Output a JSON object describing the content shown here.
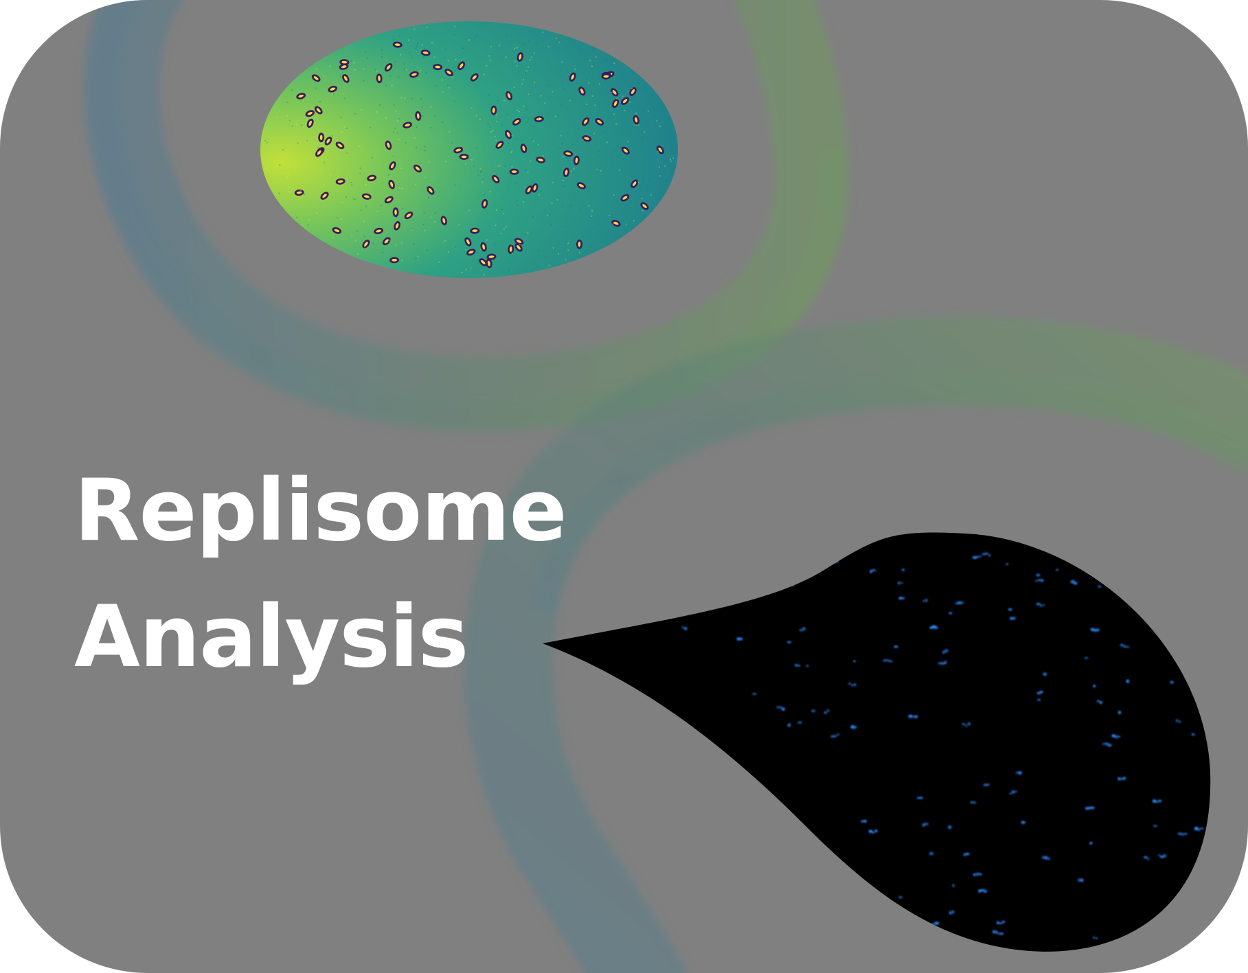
{
  "title": {
    "line1": "Replisome",
    "line2": "Analysis"
  },
  "colors": {
    "card_background": "#808080",
    "title_text": "#ffffff",
    "ribbon_blue": "#5a7d8c",
    "ribbon_green": "#6f9a5f",
    "microscopy_green_low": "#1f8f8a",
    "microscopy_green_high": "#b8dc3c",
    "cell_outline": "#3b1a5a",
    "cell_core": "#ffd84a",
    "fluorescence_background": "#000000",
    "fluorescence_spot": "#2f8cff"
  },
  "images": [
    {
      "name": "brightfield-cells-image",
      "style": "viridis colormap, bacterial cells"
    },
    {
      "name": "fluorescence-foci-image",
      "style": "black background, blue fluorescent foci"
    }
  ]
}
